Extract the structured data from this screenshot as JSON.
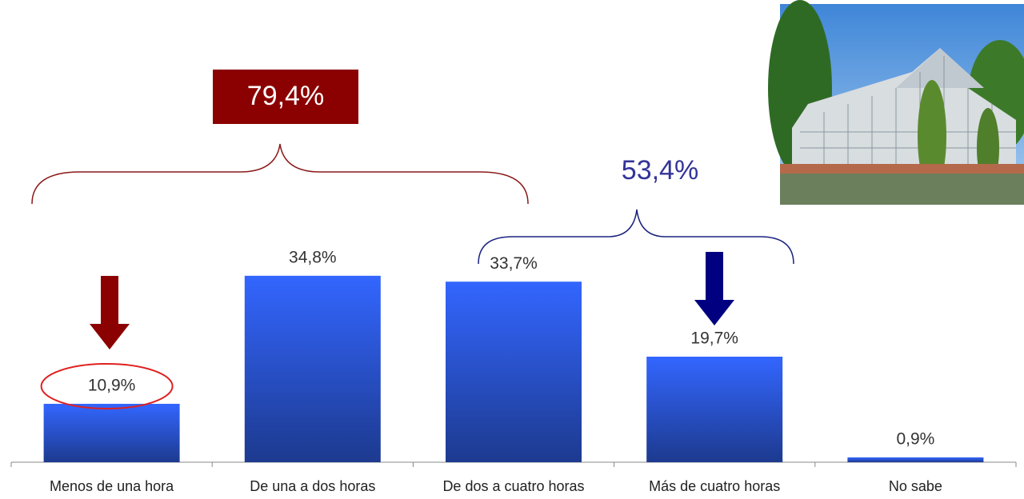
{
  "chart_data": {
    "type": "bar",
    "categories": [
      "Menos de una hora",
      "De una a dos horas",
      "De dos a cuatro horas",
      "Más de cuatro horas",
      "No sabe"
    ],
    "values": [
      10.9,
      34.8,
      33.7,
      19.7,
      0.9
    ],
    "value_labels": [
      "10,9%",
      "34,8%",
      "33,7%",
      "19,7%",
      "0,9%"
    ],
    "color": "#3366ff",
    "annotations": [
      "79,4%",
      "53,4%"
    ]
  }
}
